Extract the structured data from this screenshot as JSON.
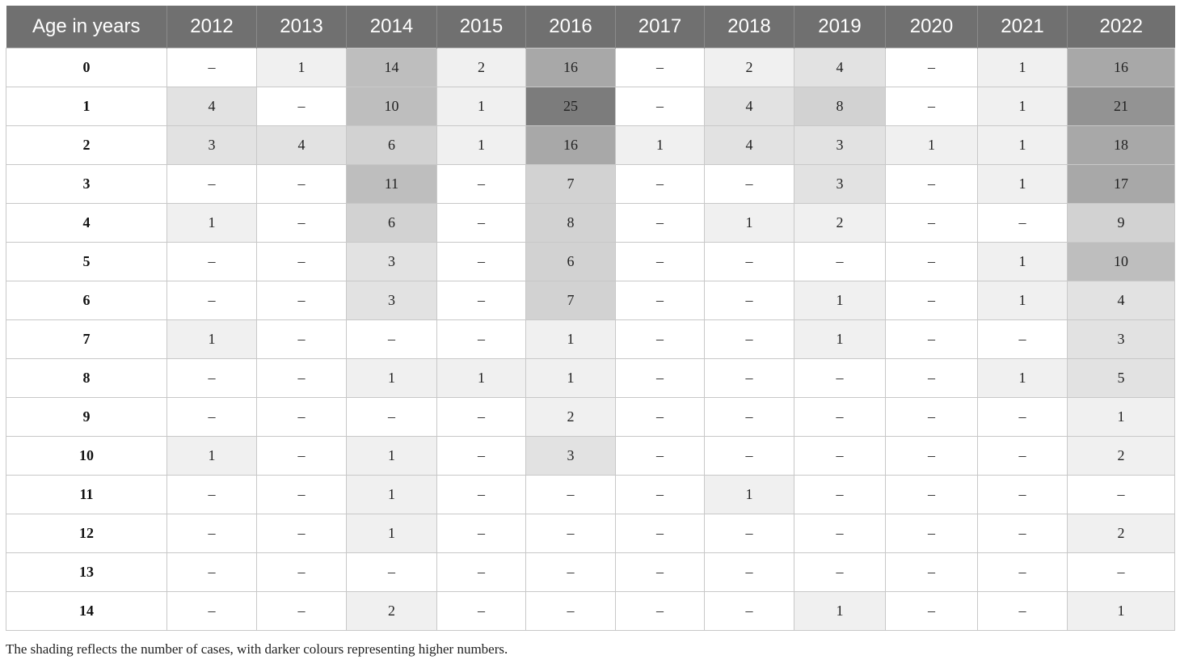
{
  "chart_data": {
    "type": "heatmap",
    "row_header": "Age in years",
    "columns": [
      "2012",
      "2013",
      "2014",
      "2015",
      "2016",
      "2017",
      "2018",
      "2019",
      "2020",
      "2021",
      "2022"
    ],
    "rows": [
      "0",
      "1",
      "2",
      "3",
      "4",
      "5",
      "6",
      "7",
      "8",
      "9",
      "10",
      "11",
      "12",
      "13",
      "14"
    ],
    "empty_symbol": "–",
    "values": [
      [
        null,
        1,
        14,
        2,
        16,
        null,
        2,
        4,
        null,
        1,
        16
      ],
      [
        4,
        null,
        10,
        1,
        25,
        null,
        4,
        8,
        null,
        1,
        21
      ],
      [
        3,
        4,
        6,
        1,
        16,
        1,
        4,
        3,
        1,
        1,
        18
      ],
      [
        null,
        null,
        11,
        null,
        7,
        null,
        null,
        3,
        null,
        1,
        17
      ],
      [
        1,
        null,
        6,
        null,
        8,
        null,
        1,
        2,
        null,
        null,
        9
      ],
      [
        null,
        null,
        3,
        null,
        6,
        null,
        null,
        null,
        null,
        1,
        10
      ],
      [
        null,
        null,
        3,
        null,
        7,
        null,
        null,
        1,
        null,
        1,
        4
      ],
      [
        1,
        null,
        null,
        null,
        1,
        null,
        null,
        1,
        null,
        null,
        3
      ],
      [
        null,
        null,
        1,
        1,
        1,
        null,
        null,
        null,
        null,
        1,
        5
      ],
      [
        null,
        null,
        null,
        null,
        2,
        null,
        null,
        null,
        null,
        null,
        1
      ],
      [
        1,
        null,
        1,
        null,
        3,
        null,
        null,
        null,
        null,
        null,
        2
      ],
      [
        null,
        null,
        1,
        null,
        null,
        null,
        1,
        null,
        null,
        null,
        null
      ],
      [
        null,
        null,
        1,
        null,
        null,
        null,
        null,
        null,
        null,
        null,
        2
      ],
      [
        null,
        null,
        null,
        null,
        null,
        null,
        null,
        null,
        null,
        null,
        null
      ],
      [
        null,
        null,
        2,
        null,
        null,
        null,
        null,
        1,
        null,
        null,
        1
      ]
    ],
    "shade_colors": {
      "v0": "#ffffff",
      "v1_2": "#f0f0f0",
      "v3_5": "#e2e2e2",
      "v6_9": "#d2d2d2",
      "v10_14": "#bebebe",
      "v15_20": "#a8a8a8",
      "v21_24": "#939393",
      "v25_up": "#7c7c7c"
    },
    "header_color": "#707070",
    "note": "The shading reflects the number of cases, with darker colours representing higher numbers."
  }
}
